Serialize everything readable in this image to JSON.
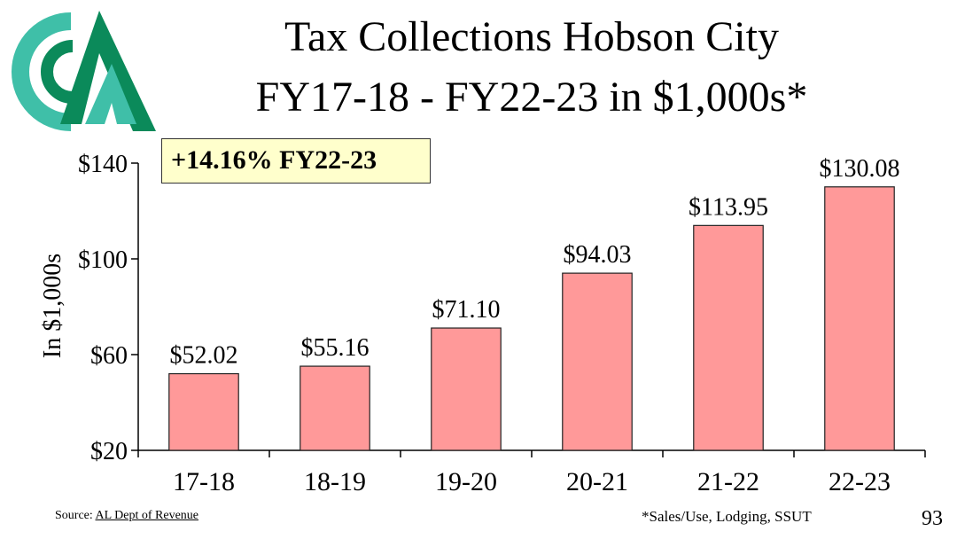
{
  "title": [
    "Tax Collections Hobson City",
    "FY17-18 - FY22-23 in $1,000s*"
  ],
  "callout": "+14.16% FY22-23",
  "footer": {
    "source_prefix": "Source: ",
    "source_link": "AL Dept of Revenue",
    "footnote": "*Sales/Use, Lodging, SSUT",
    "page_number": "93"
  },
  "colors": {
    "bar_fill": "#ff9999",
    "bar_stroke": "#222222",
    "callout_bg": "#ffffcc",
    "logo_teal": "#3fbfa8",
    "logo_green": "#0b8a5a"
  },
  "chart_data": {
    "type": "bar",
    "categories": [
      "17-18",
      "18-19",
      "19-20",
      "20-21",
      "21-22",
      "22-23"
    ],
    "values": [
      52.02,
      55.16,
      71.1,
      94.03,
      113.95,
      130.08
    ],
    "data_labels": [
      "$52.02",
      "$55.16",
      "$71.10",
      "$94.03",
      "$113.95",
      "$130.08"
    ],
    "ylabel": "In $1,000s",
    "ylim": [
      20,
      140
    ],
    "yticks": [
      20,
      60,
      100,
      140
    ],
    "ytick_labels": [
      "$20",
      "$60",
      "$100",
      "$140"
    ],
    "grid": false,
    "legend": "none"
  }
}
